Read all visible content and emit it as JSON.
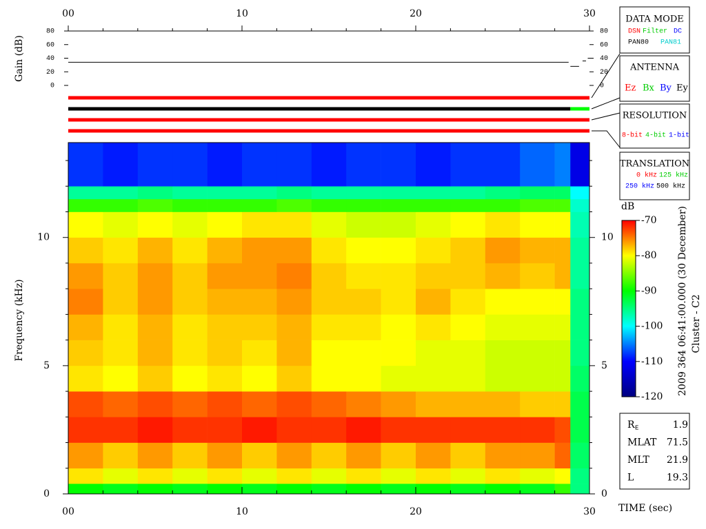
{
  "chart_data": [
    {
      "type": "line",
      "ylabel": "Gain (dB)",
      "xlim": [
        0,
        30
      ],
      "xticks": [
        {
          "value": 0,
          "label": "00"
        },
        10,
        20,
        30
      ],
      "minor_xticks": [
        2,
        4,
        6,
        8,
        12,
        14,
        16,
        18,
        22,
        24,
        26,
        28
      ],
      "ylim": [
        0,
        80
      ],
      "yticks": [
        0,
        20,
        40,
        60,
        80
      ],
      "x": [
        0,
        28.8,
        28.85,
        28.9,
        29.4,
        29.5,
        29.6,
        29.8,
        29.85,
        29.9,
        30
      ],
      "series": [
        {
          "color": "#000000",
          "values": [
            34,
            34,
            null,
            28,
            28,
            null,
            36,
            36,
            null,
            40,
            40
          ]
        }
      ]
    },
    {
      "type": "heatmap",
      "ylabel": "Frequency (kHz)",
      "xlabel": "TIME (sec)",
      "xlim": [
        0,
        30
      ],
      "xticks": [
        {
          "value": 0,
          "label": "00"
        },
        10,
        20,
        30
      ],
      "minor_xticks": [
        2,
        4,
        6,
        8,
        12,
        14,
        16,
        18,
        22,
        24,
        26,
        28
      ],
      "ylim": [
        0,
        13.7
      ],
      "yticks": [
        0,
        5,
        10
      ],
      "minor_yticks": [
        1,
        2,
        3,
        4,
        6,
        7,
        8,
        9,
        11,
        12,
        13
      ],
      "x_edges": [
        0,
        2,
        4,
        6,
        8,
        10,
        12,
        14,
        16,
        18,
        20,
        22,
        24,
        26,
        28,
        28.9,
        30
      ],
      "y_edges": [
        0,
        0.4,
        1,
        2,
        3,
        4,
        5,
        6,
        7,
        8,
        9,
        10,
        11,
        11.5,
        12,
        13.7
      ],
      "z": [
        [
          -90,
          -91,
          -90,
          -91,
          -90,
          -91,
          -90,
          -91,
          -90,
          -91,
          -90,
          -91,
          -90,
          -91,
          -88,
          -95
        ],
        [
          -79,
          -81,
          -79,
          -81,
          -79,
          -81,
          -79,
          -81,
          -79,
          -81,
          -79,
          -81,
          -79,
          -81,
          -80,
          -95
        ],
        [
          -76,
          -78,
          -76,
          -78,
          -76,
          -78,
          -76,
          -78,
          -76,
          -78,
          -76,
          -78,
          -76,
          -76,
          -74,
          -94
        ],
        [
          -72,
          -72,
          -71,
          -72,
          -72,
          -71,
          -72,
          -72,
          -71,
          -72,
          -72,
          -72,
          -72,
          -72,
          -73,
          -93
        ],
        [
          -73,
          -74,
          -73,
          -74,
          -73,
          -74,
          -73,
          -74,
          -75,
          -76,
          -77,
          -77,
          -77,
          -78,
          -78,
          -93
        ],
        [
          -79,
          -80,
          -78,
          -80,
          -79,
          -80,
          -78,
          -80,
          -80,
          -81,
          -81,
          -81,
          -82,
          -82,
          -82,
          -94
        ],
        [
          -78,
          -79,
          -77,
          -79,
          -78,
          -79,
          -77,
          -80,
          -80,
          -80,
          -81,
          -81,
          -82,
          -82,
          -82,
          -95
        ],
        [
          -77,
          -79,
          -77,
          -79,
          -78,
          -78,
          -77,
          -79,
          -79,
          -80,
          -79,
          -80,
          -81,
          -81,
          -81,
          -95
        ],
        [
          -75,
          -78,
          -76,
          -78,
          -77,
          -77,
          -76,
          -78,
          -78,
          -79,
          -77,
          -79,
          -80,
          -80,
          -80,
          -95
        ],
        [
          -76,
          -78,
          -76,
          -78,
          -76,
          -76,
          -75,
          -78,
          -79,
          -79,
          -78,
          -78,
          -77,
          -78,
          -77,
          -96
        ],
        [
          -78,
          -79,
          -77,
          -79,
          -77,
          -76,
          -76,
          -79,
          -80,
          -80,
          -79,
          -78,
          -76,
          -77,
          -77,
          -96
        ],
        [
          -80,
          -81,
          -80,
          -81,
          -80,
          -79,
          -79,
          -81,
          -82,
          -82,
          -81,
          -80,
          -79,
          -80,
          -80,
          -97
        ],
        [
          -88,
          -88,
          -87,
          -88,
          -88,
          -88,
          -87,
          -88,
          -88,
          -88,
          -88,
          -88,
          -88,
          -87,
          -87,
          -98
        ],
        [
          -96,
          -96,
          -95,
          -96,
          -96,
          -96,
          -95,
          -96,
          -96,
          -96,
          -96,
          -96,
          -95,
          -94,
          -94,
          -100
        ],
        [
          -108,
          -109,
          -108,
          -108,
          -109,
          -108,
          -108,
          -109,
          -108,
          -108,
          -109,
          -108,
          -108,
          -106,
          -105,
          -112
        ]
      ],
      "colorbar": {
        "label": "dB",
        "lim": [
          -120,
          -70
        ],
        "ticks": [
          -70,
          -80,
          -90,
          -100,
          -110,
          -120
        ],
        "colors": [
          "#000080",
          "#0000ff",
          "#00ffff",
          "#00ff00",
          "#ffff00",
          "#ff0000"
        ]
      },
      "side_label": [
        "2009 364 06:41:00.000 (30 December)",
        "Cluster - C2"
      ]
    }
  ],
  "status_bars": [
    {
      "segments": [
        {
          "color": "#ff0000",
          "x": [
            0,
            30
          ]
        }
      ]
    },
    {
      "segments": [
        {
          "color": "#000000",
          "x": [
            0,
            28.9
          ]
        },
        {
          "color": "#00ff00",
          "x": [
            28.9,
            30
          ]
        }
      ]
    },
    {
      "segments": [
        {
          "color": "#ff0000",
          "x": [
            0,
            30
          ]
        }
      ]
    },
    {
      "segments": [
        {
          "color": "#ff0000",
          "x": [
            0,
            30
          ]
        }
      ]
    }
  ],
  "legend_boxes": [
    {
      "title": "DATA MODE",
      "items": [
        {
          "text": "DSN",
          "color": "#ff0000"
        },
        {
          "text": "Filter",
          "color": "#00cc00"
        },
        {
          "text": "DC",
          "color": "#0000ff"
        },
        {
          "text": "PAN80",
          "color": "#000000"
        },
        {
          "text": "PAN81",
          "color": "#00cccc"
        }
      ]
    },
    {
      "title": "ANTENNA",
      "items": [
        {
          "text": "Ez",
          "color": "#ff0000"
        },
        {
          "text": "Bx",
          "color": "#00cc00"
        },
        {
          "text": "By",
          "color": "#0000ff"
        },
        {
          "text": "Ey",
          "color": "#000000"
        }
      ]
    },
    {
      "title": "RESOLUTION",
      "items": [
        {
          "text": "8-bit",
          "color": "#ff0000"
        },
        {
          "text": "4-bit",
          "color": "#00cc00"
        },
        {
          "text": "1-bit",
          "color": "#0000ff"
        }
      ]
    },
    {
      "title": "TRANSLATION",
      "items": [
        {
          "text": "0 kHz",
          "color": "#ff0000"
        },
        {
          "text": "125 kHz",
          "color": "#00cc00"
        },
        {
          "text": "250 kHz",
          "color": "#0000ff"
        },
        {
          "text": "500 kHz",
          "color": "#000000"
        }
      ]
    }
  ],
  "info": [
    {
      "label": "R",
      "sub": "E",
      "value": "1.9"
    },
    {
      "label": "MLAT",
      "value": "71.5"
    },
    {
      "label": "MLT",
      "value": "21.9"
    },
    {
      "label": "L",
      "value": "19.3"
    }
  ]
}
